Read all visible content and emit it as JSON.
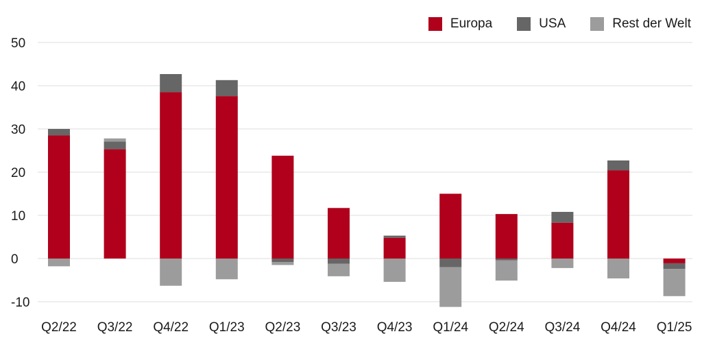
{
  "chart_data": {
    "type": "bar",
    "stacked": true,
    "categories": [
      "Q2/22",
      "Q3/22",
      "Q4/22",
      "Q1/23",
      "Q2/23",
      "Q3/23",
      "Q4/23",
      "Q1/24",
      "Q2/24",
      "Q3/24",
      "Q4/24",
      "Q1/25"
    ],
    "series": [
      {
        "name": "Europa",
        "color": "#b0001c",
        "values": [
          28.5,
          25.3,
          38.5,
          37.6,
          23.8,
          11.7,
          4.8,
          15.0,
          10.3,
          8.3,
          20.4,
          -1.1
        ]
      },
      {
        "name": "USA",
        "color": "#666666",
        "values": [
          1.5,
          1.8,
          4.2,
          3.7,
          -0.8,
          -1.2,
          0.5,
          -2.0,
          -0.4,
          2.5,
          2.3,
          -1.3
        ]
      },
      {
        "name": "Rest der Welt",
        "color": "#9c9c9c",
        "values": [
          -1.8,
          0.7,
          -6.3,
          -4.8,
          -0.7,
          -2.9,
          -5.4,
          -9.2,
          -4.7,
          -2.2,
          -4.6,
          -6.3
        ]
      }
    ],
    "yticks": [
      "50",
      "40",
      "30",
      "20",
      "10",
      "0",
      "-10"
    ],
    "ylim": [
      -10,
      50
    ],
    "xlabel": "",
    "ylabel": "",
    "grid": true,
    "legend_position": "top-right"
  }
}
